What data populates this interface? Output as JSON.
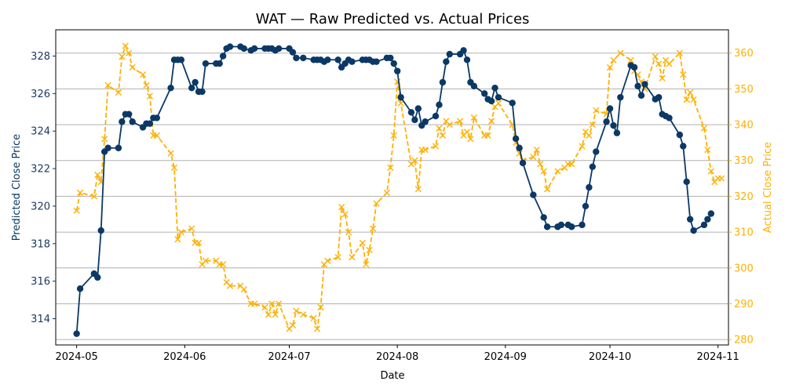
{
  "chart_data": {
    "type": "line",
    "title": "WAT — Raw Predicted vs. Actual Prices",
    "xlabel": "Date",
    "ylabel_left": "Predicted Close Price",
    "ylabel_right": "Actual Close Price",
    "xlim": [
      "2024-04-25",
      "2024-11-04"
    ],
    "ylim_left": [
      312.6,
      329.4
    ],
    "ylim_right": [
      278.5,
      366.5
    ],
    "x_ticks": [
      "2024-05",
      "2024-06",
      "2024-07",
      "2024-08",
      "2024-09",
      "2024-10",
      "2024-11"
    ],
    "y_ticks_left": [
      314,
      316,
      318,
      320,
      322,
      324,
      326,
      328
    ],
    "y_ticks_right": [
      280,
      290,
      300,
      310,
      320,
      330,
      340,
      350,
      360
    ],
    "grid": "horizontal lines at right-axis ticks",
    "colors": {
      "predicted": "#0b3866",
      "actual": "#ffb000",
      "grid": "#b0b0b0",
      "axis": "#000000"
    },
    "series": [
      {
        "axis": "left",
        "style": "solid line with circle markers",
        "points": [
          [
            "2024-05-01",
            313.2
          ],
          [
            "2024-05-02",
            315.6
          ],
          [
            "2024-05-06",
            316.4
          ],
          [
            "2024-05-07",
            316.2
          ],
          [
            "2024-05-08",
            318.7
          ],
          [
            "2024-05-09",
            322.9
          ],
          [
            "2024-05-10",
            323.1
          ],
          [
            "2024-05-13",
            323.1
          ],
          [
            "2024-05-14",
            324.5
          ],
          [
            "2024-05-15",
            324.9
          ],
          [
            "2024-05-16",
            324.9
          ],
          [
            "2024-05-17",
            324.5
          ],
          [
            "2024-05-20",
            324.2
          ],
          [
            "2024-05-21",
            324.4
          ],
          [
            "2024-05-22",
            324.4
          ],
          [
            "2024-05-23",
            324.7
          ],
          [
            "2024-05-24",
            324.7
          ],
          [
            "2024-05-28",
            326.3
          ],
          [
            "2024-05-29",
            327.8
          ],
          [
            "2024-05-30",
            327.8
          ],
          [
            "2024-05-31",
            327.8
          ],
          [
            "2024-06-03",
            326.3
          ],
          [
            "2024-06-04",
            326.6
          ],
          [
            "2024-06-05",
            326.1
          ],
          [
            "2024-06-06",
            326.1
          ],
          [
            "2024-06-07",
            327.6
          ],
          [
            "2024-06-10",
            327.6
          ],
          [
            "2024-06-11",
            327.6
          ],
          [
            "2024-06-12",
            328.0
          ],
          [
            "2024-06-13",
            328.4
          ],
          [
            "2024-06-14",
            328.5
          ],
          [
            "2024-06-17",
            328.5
          ],
          [
            "2024-06-18",
            328.4
          ],
          [
            "2024-06-20",
            328.3
          ],
          [
            "2024-06-21",
            328.4
          ],
          [
            "2024-06-24",
            328.4
          ],
          [
            "2024-06-25",
            328.4
          ],
          [
            "2024-06-26",
            328.4
          ],
          [
            "2024-06-27",
            328.3
          ],
          [
            "2024-06-28",
            328.4
          ],
          [
            "2024-07-01",
            328.4
          ],
          [
            "2024-07-02",
            328.2
          ],
          [
            "2024-07-03",
            327.9
          ],
          [
            "2024-07-05",
            327.9
          ],
          [
            "2024-07-08",
            327.8
          ],
          [
            "2024-07-09",
            327.8
          ],
          [
            "2024-07-10",
            327.8
          ],
          [
            "2024-07-11",
            327.7
          ],
          [
            "2024-07-12",
            327.8
          ],
          [
            "2024-07-15",
            327.8
          ],
          [
            "2024-07-16",
            327.4
          ],
          [
            "2024-07-17",
            327.6
          ],
          [
            "2024-07-18",
            327.8
          ],
          [
            "2024-07-19",
            327.7
          ],
          [
            "2024-07-22",
            327.8
          ],
          [
            "2024-07-23",
            327.8
          ],
          [
            "2024-07-24",
            327.8
          ],
          [
            "2024-07-25",
            327.7
          ],
          [
            "2024-07-26",
            327.7
          ],
          [
            "2024-07-29",
            327.9
          ],
          [
            "2024-07-30",
            327.9
          ],
          [
            "2024-07-31",
            327.6
          ],
          [
            "2024-08-01",
            327.2
          ],
          [
            "2024-08-02",
            325.8
          ],
          [
            "2024-08-05",
            325.0
          ],
          [
            "2024-08-06",
            324.6
          ],
          [
            "2024-08-07",
            325.2
          ],
          [
            "2024-08-08",
            324.3
          ],
          [
            "2024-08-09",
            324.5
          ],
          [
            "2024-08-12",
            324.8
          ],
          [
            "2024-08-13",
            325.4
          ],
          [
            "2024-08-14",
            326.6
          ],
          [
            "2024-08-15",
            327.7
          ],
          [
            "2024-08-16",
            328.1
          ],
          [
            "2024-08-19",
            328.1
          ],
          [
            "2024-08-20",
            328.3
          ],
          [
            "2024-08-21",
            327.8
          ],
          [
            "2024-08-22",
            326.6
          ],
          [
            "2024-08-23",
            326.4
          ],
          [
            "2024-08-26",
            326.0
          ],
          [
            "2024-08-27",
            325.7
          ],
          [
            "2024-08-28",
            325.6
          ],
          [
            "2024-08-29",
            326.3
          ],
          [
            "2024-08-30",
            325.8
          ],
          [
            "2024-09-03",
            325.5
          ],
          [
            "2024-09-04",
            323.6
          ],
          [
            "2024-09-05",
            323.1
          ],
          [
            "2024-09-06",
            322.3
          ],
          [
            "2024-09-09",
            320.6
          ],
          [
            "2024-09-12",
            319.4
          ],
          [
            "2024-09-13",
            318.9
          ],
          [
            "2024-09-16",
            318.9
          ],
          [
            "2024-09-17",
            319.0
          ],
          [
            "2024-09-19",
            319.0
          ],
          [
            "2024-09-20",
            318.9
          ],
          [
            "2024-09-23",
            319.0
          ],
          [
            "2024-09-24",
            320.0
          ],
          [
            "2024-09-25",
            321.0
          ],
          [
            "2024-09-26",
            322.1
          ],
          [
            "2024-09-27",
            322.9
          ],
          [
            "2024-09-30",
            324.5
          ],
          [
            "2024-10-01",
            325.2
          ],
          [
            "2024-10-02",
            324.3
          ],
          [
            "2024-10-03",
            323.9
          ],
          [
            "2024-10-04",
            325.8
          ],
          [
            "2024-10-07",
            327.5
          ],
          [
            "2024-10-08",
            327.4
          ],
          [
            "2024-10-09",
            326.4
          ],
          [
            "2024-10-10",
            325.9
          ],
          [
            "2024-10-11",
            326.5
          ],
          [
            "2024-10-14",
            325.7
          ],
          [
            "2024-10-15",
            325.8
          ],
          [
            "2024-10-16",
            324.9
          ],
          [
            "2024-10-17",
            324.8
          ],
          [
            "2024-10-18",
            324.7
          ],
          [
            "2024-10-21",
            323.8
          ],
          [
            "2024-10-22",
            323.2
          ],
          [
            "2024-10-23",
            321.3
          ],
          [
            "2024-10-24",
            319.3
          ],
          [
            "2024-10-25",
            318.7
          ],
          [
            "2024-10-28",
            319.0
          ],
          [
            "2024-10-29",
            319.3
          ],
          [
            "2024-10-30",
            319.6
          ]
        ]
      },
      {
        "axis": "right",
        "style": "dashed line with x markers",
        "points": [
          [
            "2024-05-01",
            316
          ],
          [
            "2024-05-02",
            321
          ],
          [
            "2024-05-06",
            320
          ],
          [
            "2024-05-07",
            326
          ],
          [
            "2024-05-08",
            324
          ],
          [
            "2024-05-09",
            336
          ],
          [
            "2024-05-10",
            351
          ],
          [
            "2024-05-13",
            349
          ],
          [
            "2024-05-14",
            359
          ],
          [
            "2024-05-15",
            362
          ],
          [
            "2024-05-16",
            360
          ],
          [
            "2024-05-17",
            356
          ],
          [
            "2024-05-20",
            354
          ],
          [
            "2024-05-21",
            351
          ],
          [
            "2024-05-22",
            348
          ],
          [
            "2024-05-23",
            337
          ],
          [
            "2024-05-24",
            337
          ],
          [
            "2024-05-28",
            332
          ],
          [
            "2024-05-29",
            328
          ],
          [
            "2024-05-30",
            308
          ],
          [
            "2024-05-31",
            310
          ],
          [
            "2024-06-03",
            311
          ],
          [
            "2024-06-04",
            307
          ],
          [
            "2024-06-05",
            307
          ],
          [
            "2024-06-06",
            301
          ],
          [
            "2024-06-07",
            302
          ],
          [
            "2024-06-10",
            302
          ],
          [
            "2024-06-11",
            301
          ],
          [
            "2024-06-12",
            301
          ],
          [
            "2024-06-13",
            296
          ],
          [
            "2024-06-14",
            295
          ],
          [
            "2024-06-17",
            295
          ],
          [
            "2024-06-18",
            294
          ],
          [
            "2024-06-20",
            290
          ],
          [
            "2024-06-21",
            290
          ],
          [
            "2024-06-24",
            289
          ],
          [
            "2024-06-25",
            287
          ],
          [
            "2024-06-26",
            290
          ],
          [
            "2024-06-27",
            287
          ],
          [
            "2024-06-28",
            290
          ],
          [
            "2024-07-01",
            283
          ],
          [
            "2024-07-02",
            284
          ],
          [
            "2024-07-03",
            288
          ],
          [
            "2024-07-05",
            287
          ],
          [
            "2024-07-08",
            286
          ],
          [
            "2024-07-09",
            283
          ],
          [
            "2024-07-10",
            289
          ],
          [
            "2024-07-11",
            301
          ],
          [
            "2024-07-12",
            302
          ],
          [
            "2024-07-15",
            303
          ],
          [
            "2024-07-16",
            317
          ],
          [
            "2024-07-17",
            315
          ],
          [
            "2024-07-18",
            310
          ],
          [
            "2024-07-19",
            303
          ],
          [
            "2024-07-22",
            307
          ],
          [
            "2024-07-23",
            301
          ],
          [
            "2024-07-24",
            305
          ],
          [
            "2024-07-25",
            311
          ],
          [
            "2024-07-26",
            318
          ],
          [
            "2024-07-29",
            321
          ],
          [
            "2024-07-30",
            328
          ],
          [
            "2024-07-31",
            337
          ],
          [
            "2024-08-01",
            352
          ],
          [
            "2024-08-02",
            346
          ],
          [
            "2024-08-05",
            329
          ],
          [
            "2024-08-06",
            330
          ],
          [
            "2024-08-07",
            322
          ],
          [
            "2024-08-08",
            333
          ],
          [
            "2024-08-09",
            333
          ],
          [
            "2024-08-12",
            334
          ],
          [
            "2024-08-13",
            339
          ],
          [
            "2024-08-14",
            337
          ],
          [
            "2024-08-15",
            341
          ],
          [
            "2024-08-16",
            340
          ],
          [
            "2024-08-19",
            341
          ],
          [
            "2024-08-20",
            337
          ],
          [
            "2024-08-21",
            338
          ],
          [
            "2024-08-22",
            336
          ],
          [
            "2024-08-23",
            342
          ],
          [
            "2024-08-26",
            337
          ],
          [
            "2024-08-27",
            337
          ],
          [
            "2024-08-28",
            341
          ],
          [
            "2024-08-29",
            345
          ],
          [
            "2024-08-30",
            346
          ],
          [
            "2024-09-03",
            340
          ],
          [
            "2024-09-04",
            335
          ],
          [
            "2024-09-05",
            332
          ],
          [
            "2024-09-06",
            330
          ],
          [
            "2024-09-09",
            331
          ],
          [
            "2024-09-10",
            333
          ],
          [
            "2024-09-11",
            329
          ],
          [
            "2024-09-12",
            327
          ],
          [
            "2024-09-13",
            322
          ],
          [
            "2024-09-16",
            327
          ],
          [
            "2024-09-18",
            328
          ],
          [
            "2024-09-19",
            329
          ],
          [
            "2024-09-20",
            329
          ],
          [
            "2024-09-23",
            334
          ],
          [
            "2024-09-24",
            338
          ],
          [
            "2024-09-25",
            337
          ],
          [
            "2024-09-26",
            340
          ],
          [
            "2024-09-27",
            344
          ],
          [
            "2024-09-30",
            343
          ],
          [
            "2024-10-01",
            356
          ],
          [
            "2024-10-02",
            358
          ],
          [
            "2024-10-04",
            360
          ],
          [
            "2024-10-07",
            358
          ],
          [
            "2024-10-08",
            355
          ],
          [
            "2024-10-09",
            354
          ],
          [
            "2024-10-10",
            352
          ],
          [
            "2024-10-11",
            350
          ],
          [
            "2024-10-14",
            359
          ],
          [
            "2024-10-15",
            357
          ],
          [
            "2024-10-16",
            353
          ],
          [
            "2024-10-17",
            358
          ],
          [
            "2024-10-18",
            357
          ],
          [
            "2024-10-21",
            360
          ],
          [
            "2024-10-22",
            354
          ],
          [
            "2024-10-23",
            347
          ],
          [
            "2024-10-24",
            349
          ],
          [
            "2024-10-25",
            347
          ],
          [
            "2024-10-28",
            339
          ],
          [
            "2024-10-29",
            333
          ],
          [
            "2024-10-30",
            327
          ],
          [
            "2024-10-31",
            324
          ],
          [
            "2024-11-01",
            325
          ],
          [
            "2024-11-02",
            325
          ]
        ]
      }
    ]
  }
}
